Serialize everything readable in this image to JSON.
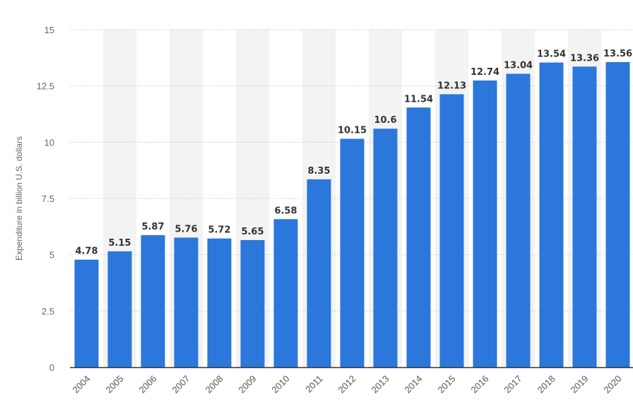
{
  "chart_data": {
    "type": "bar",
    "categories": [
      "2004",
      "2005",
      "2006",
      "2007",
      "2008",
      "2009",
      "2010",
      "2011",
      "2012",
      "2013",
      "2014",
      "2015",
      "2016",
      "2017",
      "2018",
      "2019",
      "2020"
    ],
    "values": [
      4.78,
      5.15,
      5.87,
      5.76,
      5.72,
      5.65,
      6.58,
      8.35,
      10.15,
      10.6,
      11.54,
      12.13,
      12.74,
      13.04,
      13.54,
      13.36,
      13.56
    ],
    "value_labels": [
      "4.78",
      "5.15",
      "5.87",
      "5.76",
      "5.72",
      "5.65",
      "6.58",
      "8.35",
      "10.15",
      "10.6",
      "11.54",
      "12.13",
      "12.74",
      "13.04",
      "13.54",
      "13.36",
      "13.56"
    ],
    "title": "",
    "xlabel": "",
    "ylabel": "Expenditure in billion U.S. dollars",
    "ylim": [
      0,
      15
    ],
    "yticks": [
      0,
      2.5,
      5,
      7.5,
      10,
      12.5,
      15
    ],
    "ytick_labels": [
      "0",
      "2.5",
      "5",
      "7.5",
      "10",
      "12.5",
      "15"
    ],
    "grid": true,
    "legend": "none",
    "colors": {
      "bar": "#2b77dc",
      "band": "#f3f3f3",
      "grid": "#c8c8c8",
      "axis": "#333333"
    }
  }
}
